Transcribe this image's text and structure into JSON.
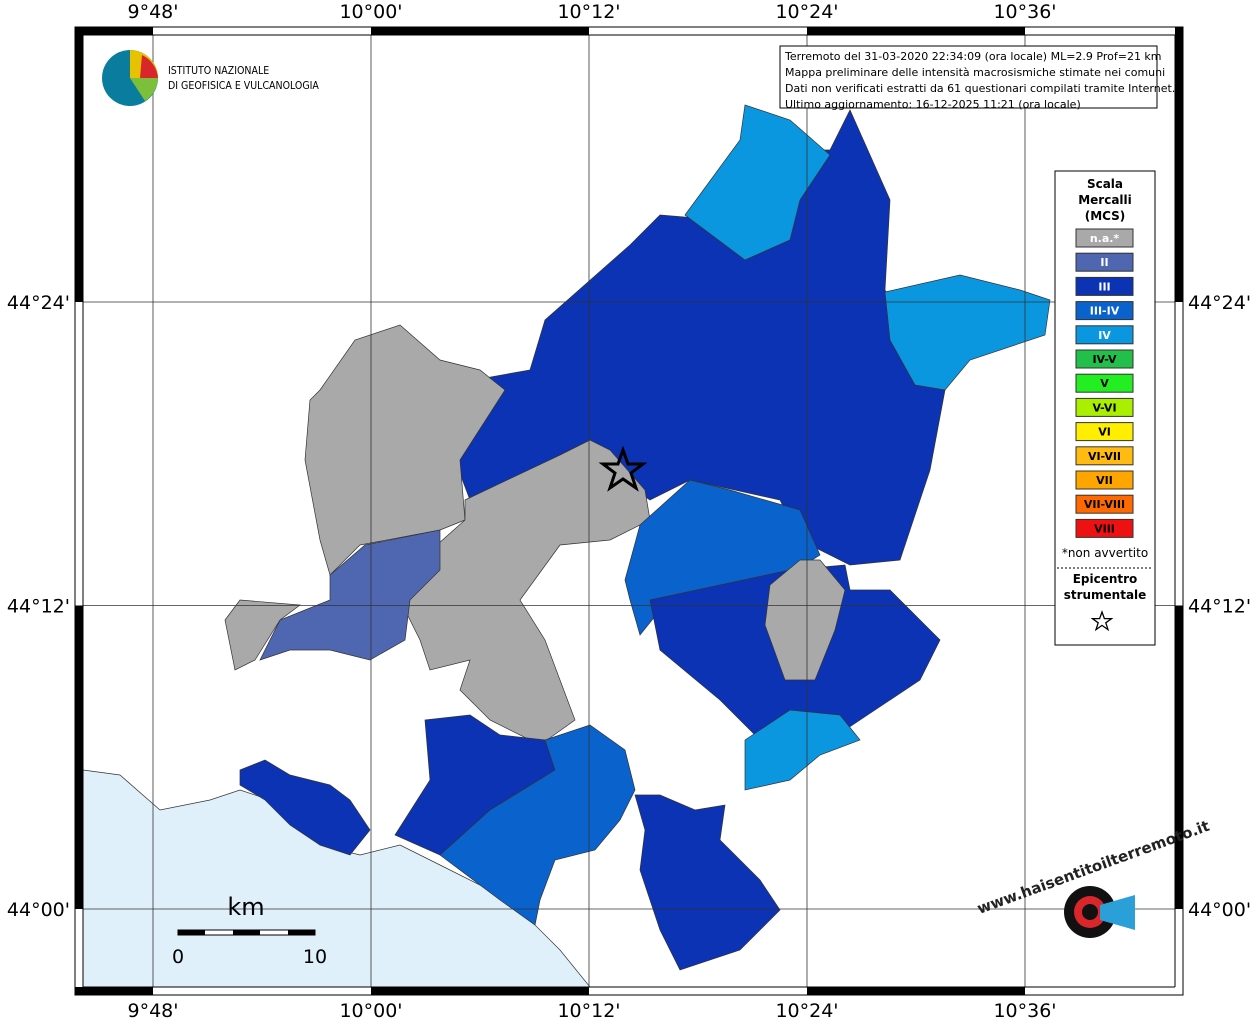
{
  "map": {
    "lon_labels": [
      "9°48'",
      "10°00'",
      "10°12'",
      "10°24'",
      "10°36'"
    ],
    "lat_labels": [
      "44°24'",
      "44°12'",
      "44°00'"
    ],
    "logo": {
      "line1": "ISTITUTO NAZIONALE",
      "line2": "DI GEOFISICA E VULCANOLOGIA"
    },
    "info_lines": [
      "Terremoto del 31-03-2020 22:34:09 (ora locale) ML=2.9 Prof=21 km",
      "Mappa preliminare delle intensità macrosismiche stimate nei comuni",
      "Dati non verificati estratti da 61 questionari compilati tramite Internet.",
      "Ultimo aggiornamento: 16-12-2025 11:21 (ora locale)"
    ],
    "legend": {
      "title": [
        "Scala",
        "Mercalli",
        "(MCS)"
      ],
      "items": [
        {
          "label": "n.a.*",
          "color": "#a9a9a9"
        },
        {
          "label": "II",
          "color": "#4f66b0"
        },
        {
          "label": "III",
          "color": "#0c33b4"
        },
        {
          "label": "III-IV",
          "color": "#0a62cc"
        },
        {
          "label": "IV",
          "color": "#0b97e0"
        },
        {
          "label": "IV-V",
          "color": "#22c04a"
        },
        {
          "label": "V",
          "color": "#22ee22"
        },
        {
          "label": "V-VI",
          "color": "#aaee00"
        },
        {
          "label": "VI",
          "color": "#ffee00"
        },
        {
          "label": "VI-VII",
          "color": "#ffbb11"
        },
        {
          "label": "VII",
          "color": "#ffa500"
        },
        {
          "label": "VII-VIII",
          "color": "#ff6a00"
        },
        {
          "label": "VIII",
          "color": "#ee1111"
        }
      ],
      "note": "*non avvertito",
      "epicenter": [
        "Epicentro",
        "strumentale"
      ]
    },
    "scale": {
      "unit": "km",
      "start": "0",
      "end": "10"
    },
    "site": "www.haisentitoilterremoto.it"
  }
}
